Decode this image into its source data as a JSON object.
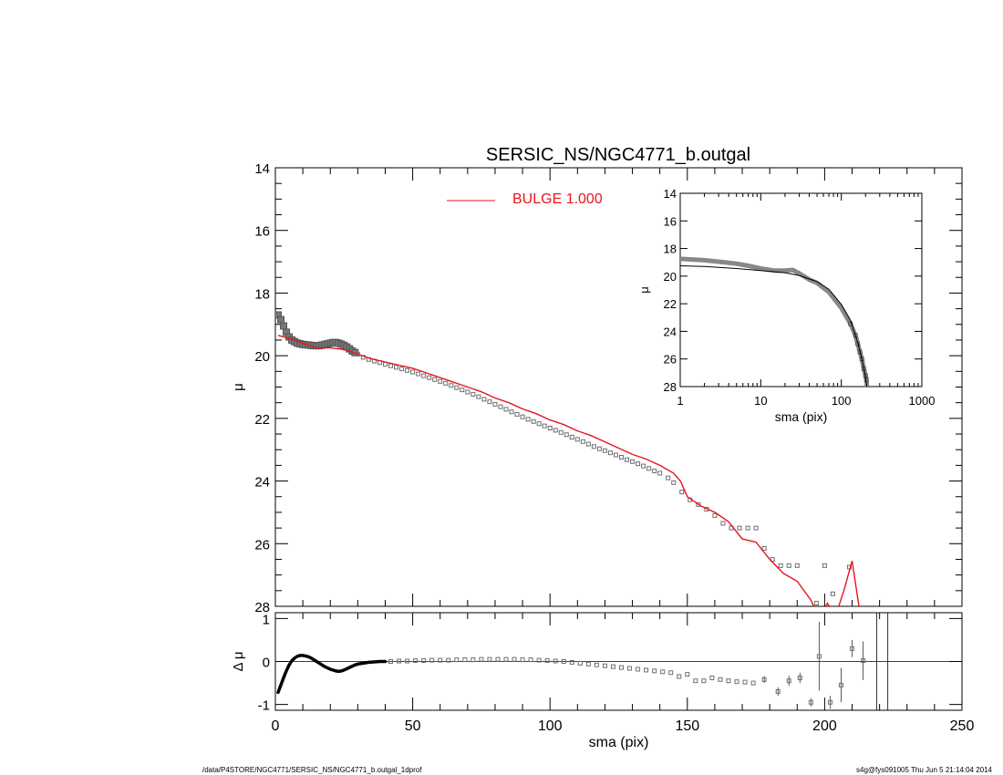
{
  "title": "SERSIC_NS/NGC4771_b.outgal",
  "footer": {
    "left": "/data/P4STORE/NGC4771/SERSIC_NS/NGC4771_b.outgal_1dprof",
    "right": "s4g@fys091005  Thu Jun  5 21:14:04 2014"
  },
  "colors": {
    "model": "#e8141c",
    "data": "#6e6e6e",
    "axis": "#000000"
  },
  "chart_data": [
    {
      "id": "main",
      "type": "line",
      "ylabel": "μ",
      "xlim": [
        0,
        250
      ],
      "ylim": [
        28,
        14
      ],
      "y_inverted": true,
      "yticks": [
        14,
        16,
        18,
        20,
        22,
        24,
        26,
        28
      ],
      "legend": {
        "label": "BULGE  1.000",
        "position": "top"
      },
      "series": [
        {
          "role": "model",
          "style": "line",
          "x": [
            1,
            5,
            10,
            15,
            20,
            25,
            30,
            35,
            40,
            45,
            50,
            55,
            60,
            65,
            70,
            75,
            80,
            85,
            90,
            95,
            100,
            105,
            110,
            115,
            120,
            125,
            130,
            135,
            140,
            145,
            147.5,
            150,
            155,
            160,
            165,
            170,
            175,
            180,
            185,
            190,
            195,
            198,
            201,
            204,
            207,
            210,
            213
          ],
          "y": [
            19.35,
            19.45,
            19.6,
            19.75,
            19.75,
            19.8,
            19.95,
            20.1,
            20.2,
            20.3,
            20.4,
            20.55,
            20.7,
            20.85,
            21.0,
            21.15,
            21.35,
            21.5,
            21.7,
            21.85,
            22.05,
            22.2,
            22.4,
            22.55,
            22.75,
            22.95,
            23.15,
            23.3,
            23.5,
            23.75,
            24.0,
            24.5,
            24.8,
            25.0,
            25.3,
            25.85,
            25.95,
            26.5,
            26.95,
            27.2,
            27.8,
            28.4,
            27.9,
            28.3,
            27.5,
            26.55,
            28.3
          ]
        },
        {
          "role": "data",
          "style": "squares",
          "x": [
            1,
            2,
            3,
            4,
            5,
            6,
            7,
            8,
            9,
            10,
            11,
            12,
            13,
            14,
            15,
            16,
            17,
            18,
            19,
            20,
            21,
            22,
            23,
            24,
            25,
            26,
            27,
            28,
            29,
            30,
            32,
            34,
            36,
            38,
            40,
            42,
            44,
            46,
            48,
            50,
            52,
            54,
            56,
            58,
            60,
            62,
            64,
            66,
            68,
            70,
            72,
            74,
            76,
            78,
            80,
            82,
            84,
            86,
            88,
            90,
            92,
            94,
            96,
            98,
            100,
            102,
            104,
            106,
            108,
            110,
            112,
            114,
            116,
            118,
            120,
            122,
            124,
            126,
            128,
            130,
            132,
            134,
            136,
            138,
            140,
            143,
            145,
            148,
            151,
            154,
            157,
            160,
            163,
            166,
            169,
            172,
            175,
            178,
            181,
            184,
            187,
            190,
            194,
            197,
            200,
            203,
            206,
            209,
            214
          ],
          "y": [
            18.7,
            18.85,
            19.05,
            19.25,
            19.4,
            19.5,
            19.55,
            19.6,
            19.62,
            19.64,
            19.65,
            19.66,
            19.67,
            19.68,
            19.68,
            19.68,
            19.66,
            19.64,
            19.62,
            19.6,
            19.58,
            19.58,
            19.6,
            19.63,
            19.67,
            19.72,
            19.78,
            19.85,
            19.9,
            19.95,
            20.05,
            20.12,
            20.17,
            20.22,
            20.27,
            20.32,
            20.37,
            20.42,
            20.47,
            20.52,
            20.58,
            20.64,
            20.7,
            20.76,
            20.82,
            20.88,
            20.95,
            21.02,
            21.09,
            21.16,
            21.23,
            21.31,
            21.39,
            21.47,
            21.55,
            21.63,
            21.71,
            21.79,
            21.87,
            21.95,
            22.03,
            22.1,
            22.17,
            22.24,
            22.31,
            22.38,
            22.45,
            22.52,
            22.6,
            22.67,
            22.74,
            22.82,
            22.9,
            22.97,
            23.03,
            23.1,
            23.17,
            23.24,
            23.32,
            23.38,
            23.45,
            23.52,
            23.6,
            23.68,
            23.75,
            23.9,
            24.05,
            24.35,
            24.6,
            24.75,
            24.9,
            25.1,
            25.35,
            25.5,
            25.5,
            25.5,
            25.5,
            26.15,
            26.5,
            26.7,
            26.7,
            26.7,
            28.3,
            27.9,
            26.7,
            27.6,
            28.1,
            26.75,
            28.3
          ]
        }
      ]
    },
    {
      "id": "inset",
      "type": "line",
      "xlabel": "sma (pix)",
      "ylabel": "μ",
      "xscale": "log",
      "xlim": [
        1,
        1000
      ],
      "ylim": [
        28,
        14
      ],
      "y_inverted": true,
      "xticks": [
        1,
        10,
        100,
        1000
      ],
      "yticks": [
        14,
        16,
        18,
        20,
        22,
        24,
        26,
        28
      ],
      "series": [
        {
          "role": "model",
          "style": "line",
          "x": [
            1,
            2,
            5,
            10,
            20,
            30,
            50,
            70,
            100,
            130,
            160,
            180,
            200,
            210
          ],
          "y": [
            19.25,
            19.3,
            19.45,
            19.6,
            19.75,
            19.95,
            20.4,
            20.95,
            22.05,
            23.2,
            24.8,
            26.0,
            27.3,
            28.2
          ]
        },
        {
          "role": "data",
          "style": "band",
          "x": [
            1,
            1.5,
            2,
            3,
            5,
            7,
            10,
            15,
            20,
            25,
            30,
            40,
            50,
            70,
            100,
            130,
            150,
            160,
            170,
            180,
            190,
            200,
            205,
            210
          ],
          "y": [
            18.75,
            18.8,
            18.85,
            18.95,
            19.1,
            19.25,
            19.45,
            19.6,
            19.6,
            19.55,
            19.8,
            20.25,
            20.5,
            21.15,
            22.3,
            23.45,
            24.3,
            24.9,
            25.5,
            26.0,
            26.7,
            27.2,
            27.5,
            28.2
          ]
        }
      ]
    },
    {
      "id": "residual",
      "type": "scatter",
      "xlabel": "sma (pix)",
      "ylabel": "Δ μ",
      "xlim": [
        0,
        250
      ],
      "ylim": [
        -1.1,
        1.1
      ],
      "xticks": [
        0,
        50,
        100,
        150,
        200,
        250
      ],
      "yticks": [
        -1,
        0,
        1
      ],
      "zero_line": true,
      "vlines": [
        219,
        223
      ],
      "curve": {
        "x": [
          1,
          2,
          3,
          4,
          5,
          6,
          7,
          8,
          9,
          10,
          11,
          12,
          13,
          14,
          15,
          16,
          17,
          18,
          19,
          20,
          21,
          22,
          23,
          24,
          25,
          26,
          27,
          28,
          29,
          30,
          32,
          34,
          36,
          38,
          40
        ],
        "y": [
          -0.72,
          -0.55,
          -0.38,
          -0.22,
          -0.08,
          0.02,
          0.08,
          0.12,
          0.14,
          0.14,
          0.13,
          0.11,
          0.08,
          0.04,
          0.0,
          -0.04,
          -0.08,
          -0.12,
          -0.15,
          -0.18,
          -0.2,
          -0.22,
          -0.23,
          -0.22,
          -0.2,
          -0.17,
          -0.14,
          -0.11,
          -0.08,
          -0.06,
          -0.04,
          -0.02,
          -0.01,
          0.0,
          0.0
        ]
      },
      "points": {
        "x": [
          42,
          45,
          48,
          51,
          54,
          57,
          60,
          63,
          66,
          69,
          72,
          75,
          78,
          81,
          84,
          87,
          90,
          93,
          96,
          99,
          102,
          105,
          108,
          111,
          114,
          117,
          120,
          123,
          126,
          129,
          132,
          135,
          138,
          141,
          144,
          147,
          150,
          153,
          156,
          159,
          162,
          165,
          168,
          171,
          174,
          178,
          183,
          187,
          191,
          195,
          198,
          202,
          206,
          210,
          214
        ],
        "y": [
          0.0,
          0.01,
          0.01,
          0.02,
          0.02,
          0.03,
          0.03,
          0.03,
          0.04,
          0.04,
          0.04,
          0.05,
          0.05,
          0.05,
          0.05,
          0.05,
          0.04,
          0.04,
          0.03,
          0.02,
          0.01,
          0.0,
          -0.02,
          -0.04,
          -0.06,
          -0.08,
          -0.1,
          -0.12,
          -0.14,
          -0.16,
          -0.18,
          -0.2,
          -0.22,
          -0.24,
          -0.26,
          -0.35,
          -0.3,
          -0.45,
          -0.45,
          -0.38,
          -0.42,
          -0.45,
          -0.47,
          -0.48,
          -0.5,
          -0.42,
          -0.7,
          -0.45,
          -0.38,
          -0.95,
          0.12,
          -0.95,
          -0.55,
          0.3,
          0.02
        ],
        "err": [
          0,
          0,
          0,
          0,
          0,
          0,
          0,
          0,
          0,
          0,
          0,
          0,
          0,
          0,
          0,
          0,
          0,
          0,
          0,
          0,
          0,
          0,
          0,
          0,
          0,
          0,
          0,
          0,
          0,
          0,
          0,
          0,
          0,
          0,
          0,
          0,
          0,
          0,
          0,
          0,
          0,
          0,
          0,
          0,
          0,
          0.08,
          0.1,
          0.12,
          0.12,
          0.1,
          0.8,
          0.15,
          0.4,
          0.2,
          0.45
        ]
      }
    }
  ]
}
